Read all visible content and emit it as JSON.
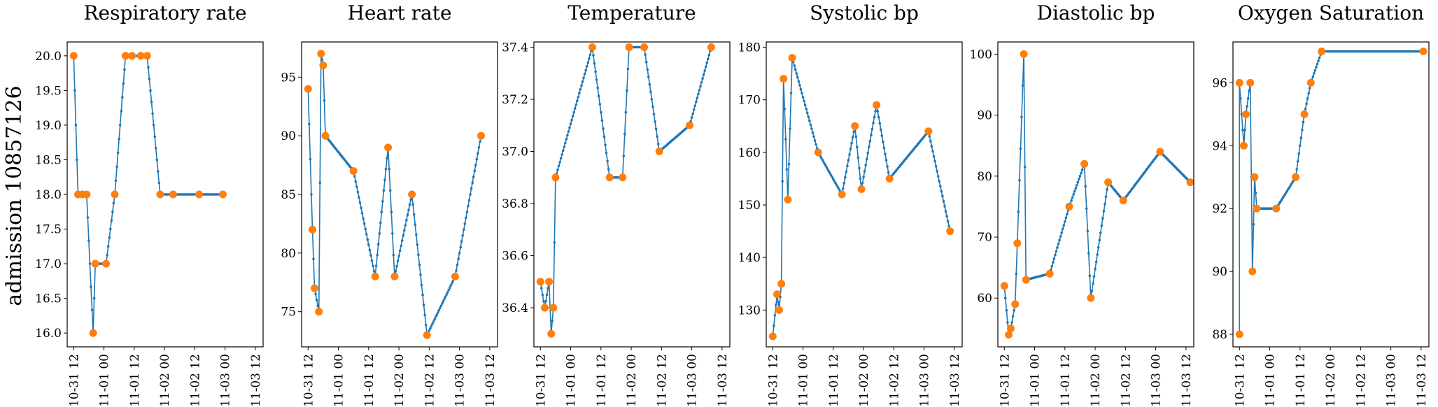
{
  "figure": {
    "ylabel": "admission 10857126",
    "x_ticks": [
      "10-31 12",
      "11-01 00",
      "11-01 12",
      "11-02 00",
      "11-02 12",
      "11-03 00",
      "11-03 12"
    ],
    "colors": {
      "line": "#1f77b4",
      "measured": "#ff7f0e"
    }
  },
  "chart_data": [
    {
      "type": "line",
      "title": "Respiratory rate",
      "xlabel": "",
      "ylabel": "",
      "x_unit": "hours since 10-31 12:00",
      "ylim": [
        15.8,
        20.2
      ],
      "y_ticks": [
        "16.0",
        "16.5",
        "17.0",
        "17.5",
        "18.0",
        "18.5",
        "19.0",
        "19.5",
        "20.0"
      ],
      "measured_points": [
        [
          0.0,
          20.0
        ],
        [
          1.0,
          18.0
        ],
        [
          2.0,
          18.0
        ],
        [
          3.0,
          18.0
        ],
        [
          4.5,
          16.0
        ],
        [
          5.0,
          17.0
        ],
        [
          7.5,
          17.0
        ],
        [
          9.5,
          18.0
        ],
        [
          12.0,
          20.0
        ],
        [
          13.5,
          20.0
        ],
        [
          15.5,
          20.0
        ],
        [
          17.0,
          20.0
        ],
        [
          20.0,
          18.0
        ],
        [
          23.0,
          18.0
        ],
        [
          29.0,
          18.0
        ],
        [
          34.5,
          18.0
        ]
      ]
    },
    {
      "type": "line",
      "title": "Heart rate",
      "xlabel": "",
      "ylabel": "",
      "x_unit": "hours since 10-31 12:00",
      "ylim": [
        72,
        98
      ],
      "y_ticks": [
        "75",
        "80",
        "85",
        "90",
        "95"
      ],
      "measured_points": [
        [
          0.0,
          94
        ],
        [
          1.0,
          82
        ],
        [
          1.5,
          77
        ],
        [
          2.5,
          75
        ],
        [
          3.0,
          97
        ],
        [
          3.5,
          96
        ],
        [
          4.0,
          90
        ],
        [
          10.5,
          87
        ],
        [
          15.5,
          78
        ],
        [
          18.5,
          89
        ],
        [
          20.0,
          78
        ],
        [
          24.0,
          85
        ],
        [
          27.5,
          73
        ],
        [
          34.0,
          78
        ],
        [
          40.0,
          90
        ]
      ]
    },
    {
      "type": "line",
      "title": "Temperature",
      "xlabel": "",
      "ylabel": "",
      "x_unit": "hours since 10-31 12:00",
      "ylim": [
        36.25,
        37.42
      ],
      "y_ticks": [
        "36.4",
        "36.6",
        "36.8",
        "37.0",
        "37.2",
        "37.4"
      ],
      "measured_points": [
        [
          0.0,
          36.5
        ],
        [
          1.0,
          36.4
        ],
        [
          2.0,
          36.5
        ],
        [
          2.5,
          36.3
        ],
        [
          3.0,
          36.4
        ],
        [
          3.5,
          36.9
        ],
        [
          12.0,
          37.4
        ],
        [
          16.0,
          36.9
        ],
        [
          19.0,
          36.9
        ],
        [
          20.5,
          37.4
        ],
        [
          24.0,
          37.4
        ],
        [
          27.5,
          37.0
        ],
        [
          34.5,
          37.1
        ],
        [
          39.5,
          37.4
        ]
      ]
    },
    {
      "type": "line",
      "title": "Systolic bp",
      "xlabel": "",
      "ylabel": "",
      "x_unit": "hours since 10-31 12:00",
      "ylim": [
        123,
        181
      ],
      "y_ticks": [
        "130",
        "140",
        "150",
        "160",
        "170",
        "180"
      ],
      "measured_points": [
        [
          0.0,
          125
        ],
        [
          1.0,
          133
        ],
        [
          1.5,
          130
        ],
        [
          2.0,
          135
        ],
        [
          2.5,
          174
        ],
        [
          3.5,
          151
        ],
        [
          4.5,
          178
        ],
        [
          10.5,
          160
        ],
        [
          16.0,
          152
        ],
        [
          19.0,
          165
        ],
        [
          20.5,
          153
        ],
        [
          24.0,
          169
        ],
        [
          27.0,
          155
        ],
        [
          36.0,
          164
        ],
        [
          41.0,
          145
        ]
      ]
    },
    {
      "type": "line",
      "title": "Diastolic bp",
      "xlabel": "",
      "ylabel": "",
      "x_unit": "hours since 10-31 12:00",
      "ylim": [
        52,
        102
      ],
      "y_ticks": [
        "60",
        "70",
        "80",
        "90",
        "100"
      ],
      "measured_points": [
        [
          0.0,
          62
        ],
        [
          1.0,
          54
        ],
        [
          1.5,
          55
        ],
        [
          2.5,
          59
        ],
        [
          3.0,
          69
        ],
        [
          4.5,
          100
        ],
        [
          5.0,
          63
        ],
        [
          10.5,
          64
        ],
        [
          15.0,
          75
        ],
        [
          18.5,
          82
        ],
        [
          20.0,
          60
        ],
        [
          24.0,
          79
        ],
        [
          27.5,
          76
        ],
        [
          36.0,
          84
        ],
        [
          43.0,
          79
        ]
      ]
    },
    {
      "type": "line",
      "title": "Oxygen Saturation",
      "xlabel": "",
      "ylabel": "",
      "x_unit": "hours since 10-31 12:00",
      "ylim": [
        87.6,
        97.3
      ],
      "y_ticks": [
        "88",
        "90",
        "92",
        "94",
        "96"
      ],
      "measured_points": [
        [
          0.0,
          88
        ],
        [
          0.0,
          96
        ],
        [
          1.0,
          94
        ],
        [
          1.5,
          95
        ],
        [
          2.5,
          96
        ],
        [
          3.0,
          90
        ],
        [
          3.5,
          93
        ],
        [
          4.0,
          92
        ],
        [
          8.5,
          92
        ],
        [
          13.0,
          93
        ],
        [
          15.0,
          95
        ],
        [
          16.5,
          96
        ],
        [
          19.0,
          97
        ],
        [
          42.5,
          97
        ]
      ]
    }
  ]
}
